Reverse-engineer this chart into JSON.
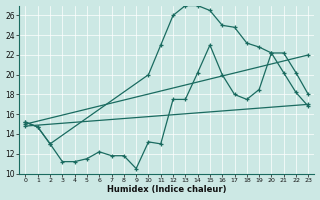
{
  "xlabel": "Humidex (Indice chaleur)",
  "xlim": [
    -0.5,
    23.5
  ],
  "ylim": [
    10,
    27
  ],
  "yticks": [
    10,
    12,
    14,
    16,
    18,
    20,
    22,
    24,
    26
  ],
  "xticks": [
    0,
    1,
    2,
    3,
    4,
    5,
    6,
    7,
    8,
    9,
    10,
    11,
    12,
    13,
    14,
    15,
    16,
    17,
    18,
    19,
    20,
    21,
    22,
    23
  ],
  "bg_color": "#cce8e4",
  "line_color": "#1a6b60",
  "wavy_x": [
    0,
    1,
    2,
    3,
    4,
    5,
    6,
    7,
    8,
    9,
    10,
    11,
    12,
    13,
    14,
    15,
    16,
    17,
    18,
    19,
    20,
    21,
    22,
    23
  ],
  "wavy_y": [
    15.2,
    14.7,
    13.0,
    11.2,
    11.2,
    11.5,
    12.2,
    11.8,
    11.8,
    10.5,
    13.2,
    13.0,
    17.5,
    17.5,
    20.2,
    23.0,
    20.0,
    18.0,
    17.5,
    18.5,
    22.2,
    22.2,
    20.2,
    18.0
  ],
  "peak_x": [
    0,
    1,
    2,
    10,
    11,
    12,
    13,
    14,
    15,
    16,
    17,
    18,
    19,
    20,
    21,
    22,
    23
  ],
  "peak_y": [
    15.2,
    14.7,
    13.0,
    20.0,
    23.0,
    26.0,
    27.0,
    27.0,
    26.5,
    25.0,
    24.8,
    23.2,
    22.8,
    22.2,
    20.2,
    18.2,
    16.8
  ],
  "trend1_x": [
    0,
    23
  ],
  "trend1_y": [
    15.0,
    22.0
  ],
  "trend2_x": [
    0,
    23
  ],
  "trend2_y": [
    14.8,
    17.0
  ]
}
